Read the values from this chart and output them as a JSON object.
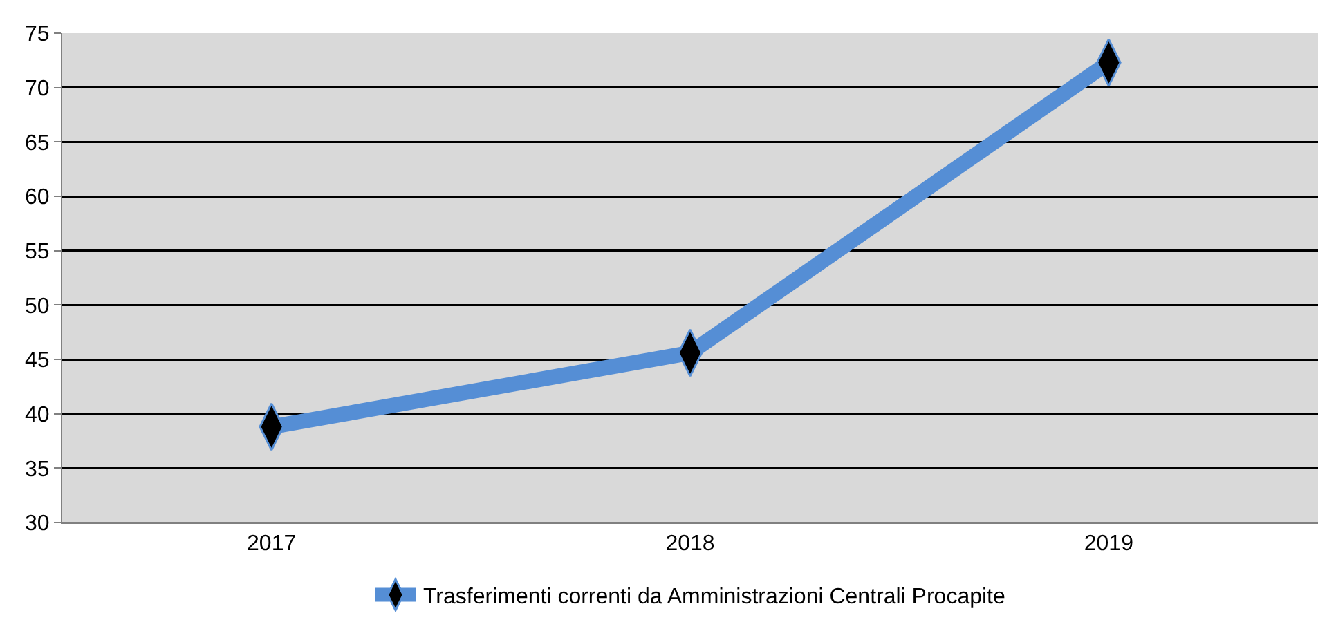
{
  "chart_data": {
    "type": "line",
    "categories": [
      "2017",
      "2018",
      "2019"
    ],
    "series": [
      {
        "name": "Trasferimenti correnti da Amministrazioni Centrali Procapite",
        "color": "#558ed5",
        "values": [
          38.8,
          45.6,
          72.3
        ]
      }
    ],
    "ylim": [
      30,
      75
    ],
    "yticks": [
      30,
      35,
      40,
      45,
      50,
      55,
      60,
      65,
      70,
      75
    ],
    "grid": "y",
    "legend": "bottom",
    "marker": "diamond",
    "line_style": "solid"
  }
}
